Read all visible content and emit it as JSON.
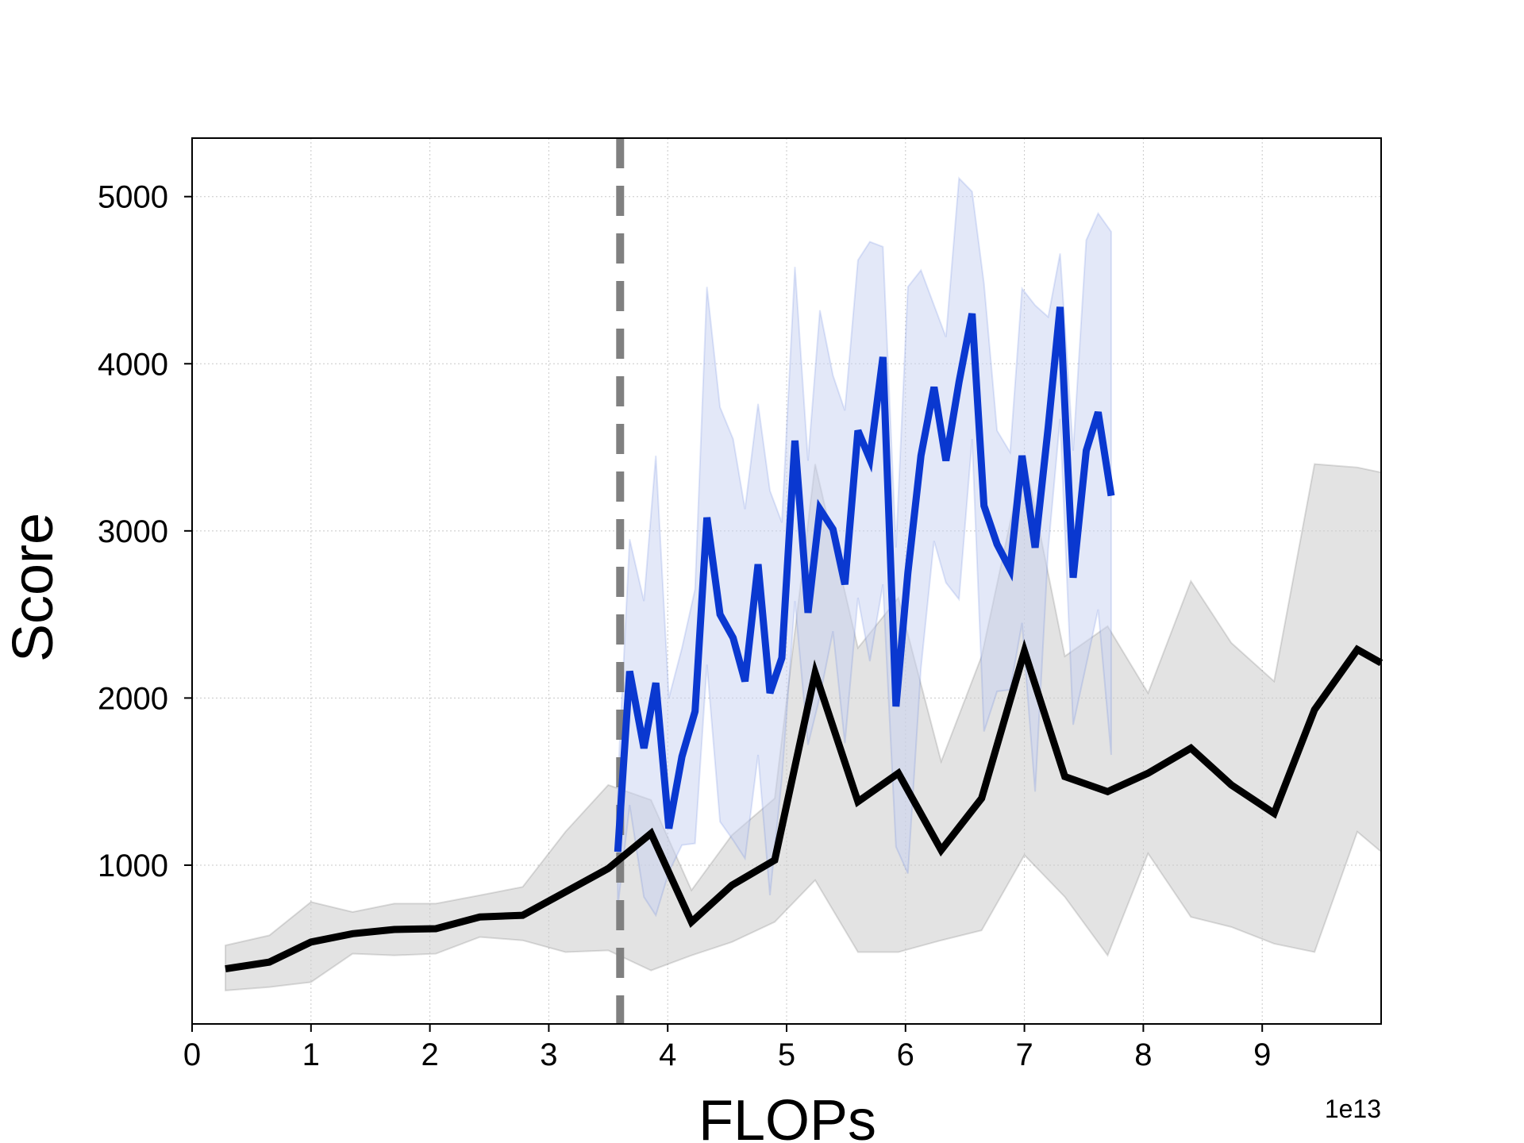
{
  "chart_data": {
    "type": "line",
    "title": "",
    "xlabel": "FLOPs",
    "ylabel": "Score",
    "x_offset_label": "1e13",
    "xlim": [
      0,
      10
    ],
    "ylim": [
      50,
      5350
    ],
    "x_ticks": [
      0,
      1,
      2,
      3,
      4,
      5,
      6,
      7,
      8,
      9
    ],
    "x_tick_labels": [
      "0",
      "1",
      "2",
      "3",
      "4",
      "5",
      "6",
      "7",
      "8",
      "9"
    ],
    "y_ticks": [
      1000,
      2000,
      3000,
      4000,
      5000
    ],
    "y_tick_labels": [
      "1000",
      "2000",
      "3000",
      "4000",
      "5000"
    ],
    "grid": true,
    "vline": {
      "x": 3.6,
      "style": "dashed",
      "color": "#808080"
    },
    "series": [
      {
        "color": "#000000",
        "band_color": "#cccccc",
        "x": [
          0.28,
          0.65,
          1.0,
          1.35,
          1.7,
          2.05,
          2.42,
          2.78,
          3.14,
          3.5,
          3.86,
          4.2,
          4.54,
          4.9,
          5.24,
          5.6,
          5.94,
          6.3,
          6.64,
          7.0,
          7.34,
          7.7,
          8.04,
          8.4,
          8.74,
          9.1,
          9.44,
          9.8,
          10.0
        ],
        "y": [
          380,
          420,
          540,
          590,
          615,
          620,
          690,
          700,
          840,
          980,
          1190,
          660,
          880,
          1030,
          2150,
          1380,
          1550,
          1090,
          1400,
          2280,
          1530,
          1440,
          1550,
          1700,
          1480,
          1310,
          1930,
          2290,
          2210
        ],
        "upper": [
          520,
          580,
          780,
          720,
          770,
          770,
          820,
          870,
          1200,
          1480,
          1390,
          850,
          1180,
          1400,
          3400,
          2300,
          2600,
          1620,
          2250,
          3450,
          2250,
          2430,
          2030,
          2700,
          2330,
          2100,
          3400,
          3380,
          3350
        ],
        "lower": [
          250,
          270,
          300,
          470,
          460,
          470,
          570,
          550,
          480,
          490,
          370,
          460,
          540,
          660,
          910,
          480,
          480,
          550,
          610,
          1060,
          810,
          460,
          1070,
          690,
          630,
          530,
          480,
          1200,
          1080
        ]
      },
      {
        "color": "#0a38d0",
        "band_color": "#c8d2f2",
        "x": [
          3.58,
          3.68,
          3.8,
          3.9,
          4.01,
          4.12,
          4.23,
          4.33,
          4.44,
          4.55,
          4.65,
          4.76,
          4.86,
          4.96,
          5.07,
          5.18,
          5.28,
          5.39,
          5.49,
          5.6,
          5.7,
          5.81,
          5.92,
          6.02,
          6.13,
          6.24,
          6.34,
          6.45,
          6.56,
          6.66,
          6.77,
          6.88,
          6.98,
          7.09,
          7.2,
          7.3,
          7.41,
          7.52,
          7.62,
          7.73
        ],
        "y": [
          1080,
          2160,
          1700,
          2090,
          1220,
          1650,
          1920,
          3080,
          2500,
          2360,
          2100,
          2800,
          2030,
          2240,
          3540,
          2510,
          3130,
          3010,
          2680,
          3600,
          3430,
          4040,
          1950,
          2750,
          3450,
          3860,
          3420,
          3890,
          4300,
          3150,
          2920,
          2770,
          3450,
          2900,
          3620,
          4340,
          2720,
          3480,
          3710,
          3210
        ],
        "upper": [
          1500,
          2950,
          2580,
          3450,
          2000,
          2300,
          2650,
          4460,
          3740,
          3550,
          3130,
          3760,
          3240,
          3050,
          4580,
          3420,
          4320,
          3930,
          3720,
          4620,
          4730,
          4700,
          2900,
          4460,
          4560,
          4350,
          4160,
          5110,
          5030,
          4480,
          3600,
          3470,
          4450,
          4350,
          4280,
          4660,
          3480,
          4740,
          4900,
          4790
        ],
        "lower": [
          750,
          1360,
          810,
          700,
          960,
          1120,
          1130,
          2200,
          1260,
          1150,
          1040,
          1660,
          820,
          1520,
          2580,
          1720,
          2010,
          2400,
          1730,
          2600,
          2220,
          2680,
          1110,
          950,
          2180,
          2940,
          2690,
          2590,
          3550,
          1800,
          2040,
          2050,
          2450,
          1440,
          2890,
          3670,
          1840,
          2200,
          2530,
          1660
        ]
      }
    ]
  }
}
